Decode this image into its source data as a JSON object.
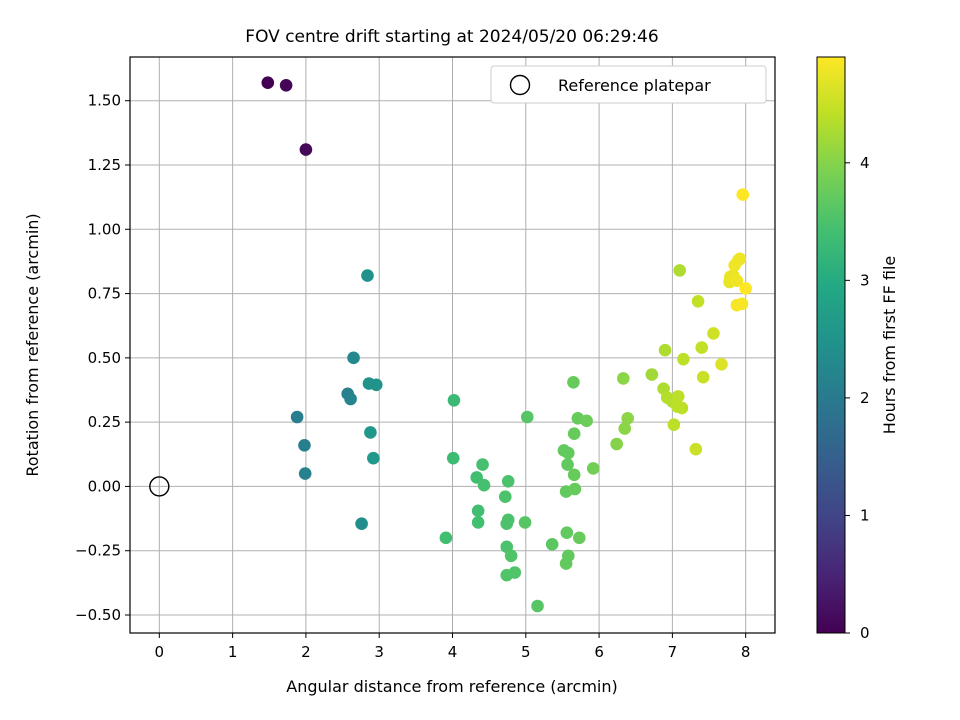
{
  "chart_data": {
    "type": "scatter",
    "title": "FOV centre drift starting at 2024/05/20 06:29:46",
    "xlabel": "Angular distance from reference (arcmin)",
    "ylabel": "Rotation from reference (arcmin)",
    "xlim": [
      -0.4,
      8.4
    ],
    "ylim": [
      -0.57,
      1.67
    ],
    "xticks": [
      0,
      1,
      2,
      3,
      4,
      5,
      6,
      7,
      8
    ],
    "xtick_labels": [
      "0",
      "1",
      "2",
      "3",
      "4",
      "5",
      "6",
      "7",
      "8"
    ],
    "yticks": [
      -0.5,
      -0.25,
      0,
      0.25,
      0.5,
      0.75,
      1.0,
      1.25,
      1.5
    ],
    "ytick_labels": [
      "−0.50",
      "−0.25",
      "0.00",
      "0.25",
      "0.50",
      "0.75",
      "1.00",
      "1.25",
      "1.50"
    ],
    "grid": true,
    "legend": {
      "position": "top-right",
      "entries": [
        {
          "label": "Reference platepar",
          "marker": "open-circle"
        }
      ]
    },
    "reference_point": {
      "x": 0,
      "y": 0
    },
    "colorbar": {
      "label": "Hours from first FF file",
      "colormap": "viridis",
      "range": [
        0,
        4.9
      ],
      "ticks": [
        0,
        1,
        2,
        3,
        4
      ],
      "tick_labels": [
        "0",
        "1",
        "2",
        "3",
        "4"
      ]
    },
    "points": [
      {
        "x": 1.48,
        "y": 1.57,
        "t": 0.0
      },
      {
        "x": 1.73,
        "y": 1.56,
        "t": 0.05
      },
      {
        "x": 2.0,
        "y": 1.31,
        "t": 0.1
      },
      {
        "x": 1.88,
        "y": 0.27,
        "t": 2.05
      },
      {
        "x": 1.98,
        "y": 0.16,
        "t": 2.1
      },
      {
        "x": 1.99,
        "y": 0.05,
        "t": 2.15
      },
      {
        "x": 2.57,
        "y": 0.36,
        "t": 2.15
      },
      {
        "x": 2.61,
        "y": 0.34,
        "t": 2.2
      },
      {
        "x": 2.65,
        "y": 0.5,
        "t": 2.3
      },
      {
        "x": 2.76,
        "y": -0.145,
        "t": 2.4
      },
      {
        "x": 2.84,
        "y": 0.82,
        "t": 2.45
      },
      {
        "x": 2.86,
        "y": 0.4,
        "t": 2.5
      },
      {
        "x": 2.96,
        "y": 0.395,
        "t": 2.5
      },
      {
        "x": 2.88,
        "y": 0.21,
        "t": 2.55
      },
      {
        "x": 2.92,
        "y": 0.11,
        "t": 2.6
      },
      {
        "x": 3.91,
        "y": -0.2,
        "t": 3.4
      },
      {
        "x": 4.02,
        "y": 0.335,
        "t": 3.3
      },
      {
        "x": 4.01,
        "y": 0.11,
        "t": 3.35
      },
      {
        "x": 4.33,
        "y": 0.035,
        "t": 3.4
      },
      {
        "x": 4.35,
        "y": -0.095,
        "t": 3.4
      },
      {
        "x": 4.35,
        "y": -0.14,
        "t": 3.4
      },
      {
        "x": 4.41,
        "y": 0.085,
        "t": 3.45
      },
      {
        "x": 4.43,
        "y": 0.005,
        "t": 3.45
      },
      {
        "x": 4.72,
        "y": -0.04,
        "t": 3.5
      },
      {
        "x": 4.76,
        "y": 0.02,
        "t": 3.5
      },
      {
        "x": 4.76,
        "y": -0.13,
        "t": 3.5
      },
      {
        "x": 4.74,
        "y": -0.145,
        "t": 3.5
      },
      {
        "x": 4.74,
        "y": -0.235,
        "t": 3.5
      },
      {
        "x": 4.8,
        "y": -0.27,
        "t": 3.55
      },
      {
        "x": 4.74,
        "y": -0.345,
        "t": 3.55
      },
      {
        "x": 4.85,
        "y": -0.335,
        "t": 3.55
      },
      {
        "x": 4.99,
        "y": -0.14,
        "t": 3.6
      },
      {
        "x": 5.02,
        "y": 0.27,
        "t": 3.6
      },
      {
        "x": 5.16,
        "y": -0.465,
        "t": 3.6
      },
      {
        "x": 5.36,
        "y": -0.225,
        "t": 3.65
      },
      {
        "x": 5.52,
        "y": 0.14,
        "t": 3.7
      },
      {
        "x": 5.55,
        "y": -0.02,
        "t": 3.7
      },
      {
        "x": 5.57,
        "y": 0.085,
        "t": 3.7
      },
      {
        "x": 5.58,
        "y": 0.13,
        "t": 3.7
      },
      {
        "x": 5.56,
        "y": -0.18,
        "t": 3.7
      },
      {
        "x": 5.58,
        "y": -0.27,
        "t": 3.7
      },
      {
        "x": 5.55,
        "y": -0.3,
        "t": 3.7
      },
      {
        "x": 5.65,
        "y": 0.405,
        "t": 3.75
      },
      {
        "x": 5.66,
        "y": 0.205,
        "t": 3.75
      },
      {
        "x": 5.66,
        "y": 0.045,
        "t": 3.75
      },
      {
        "x": 5.67,
        "y": -0.01,
        "t": 3.75
      },
      {
        "x": 5.71,
        "y": 0.265,
        "t": 3.75
      },
      {
        "x": 5.73,
        "y": -0.2,
        "t": 3.75
      },
      {
        "x": 5.83,
        "y": 0.255,
        "t": 3.8
      },
      {
        "x": 5.92,
        "y": 0.07,
        "t": 3.85
      },
      {
        "x": 6.24,
        "y": 0.165,
        "t": 4.0
      },
      {
        "x": 6.33,
        "y": 0.42,
        "t": 4.05
      },
      {
        "x": 6.35,
        "y": 0.225,
        "t": 4.05
      },
      {
        "x": 6.39,
        "y": 0.265,
        "t": 4.05
      },
      {
        "x": 6.72,
        "y": 0.435,
        "t": 4.2
      },
      {
        "x": 6.88,
        "y": 0.38,
        "t": 4.3
      },
      {
        "x": 6.9,
        "y": 0.53,
        "t": 4.3
      },
      {
        "x": 6.93,
        "y": 0.345,
        "t": 4.35
      },
      {
        "x": 7.0,
        "y": 0.33,
        "t": 4.35
      },
      {
        "x": 7.02,
        "y": 0.24,
        "t": 4.4
      },
      {
        "x": 7.07,
        "y": 0.31,
        "t": 4.4
      },
      {
        "x": 7.08,
        "y": 0.35,
        "t": 4.4
      },
      {
        "x": 7.13,
        "y": 0.305,
        "t": 4.4
      },
      {
        "x": 7.1,
        "y": 0.84,
        "t": 4.3
      },
      {
        "x": 7.15,
        "y": 0.495,
        "t": 4.4
      },
      {
        "x": 7.32,
        "y": 0.145,
        "t": 4.5
      },
      {
        "x": 7.35,
        "y": 0.72,
        "t": 4.45
      },
      {
        "x": 7.4,
        "y": 0.54,
        "t": 4.45
      },
      {
        "x": 7.42,
        "y": 0.425,
        "t": 4.5
      },
      {
        "x": 7.56,
        "y": 0.595,
        "t": 4.55
      },
      {
        "x": 7.67,
        "y": 0.475,
        "t": 4.65
      },
      {
        "x": 7.78,
        "y": 0.795,
        "t": 4.75
      },
      {
        "x": 7.79,
        "y": 0.815,
        "t": 4.75
      },
      {
        "x": 7.83,
        "y": 0.82,
        "t": 4.75
      },
      {
        "x": 7.85,
        "y": 0.86,
        "t": 4.8
      },
      {
        "x": 7.88,
        "y": 0.8,
        "t": 4.8
      },
      {
        "x": 7.9,
        "y": 0.88,
        "t": 4.8
      },
      {
        "x": 7.92,
        "y": 0.885,
        "t": 4.8
      },
      {
        "x": 7.88,
        "y": 0.705,
        "t": 4.85
      },
      {
        "x": 7.95,
        "y": 0.71,
        "t": 4.85
      },
      {
        "x": 7.96,
        "y": 1.135,
        "t": 4.9
      },
      {
        "x": 8.0,
        "y": 0.77,
        "t": 4.9
      }
    ]
  }
}
